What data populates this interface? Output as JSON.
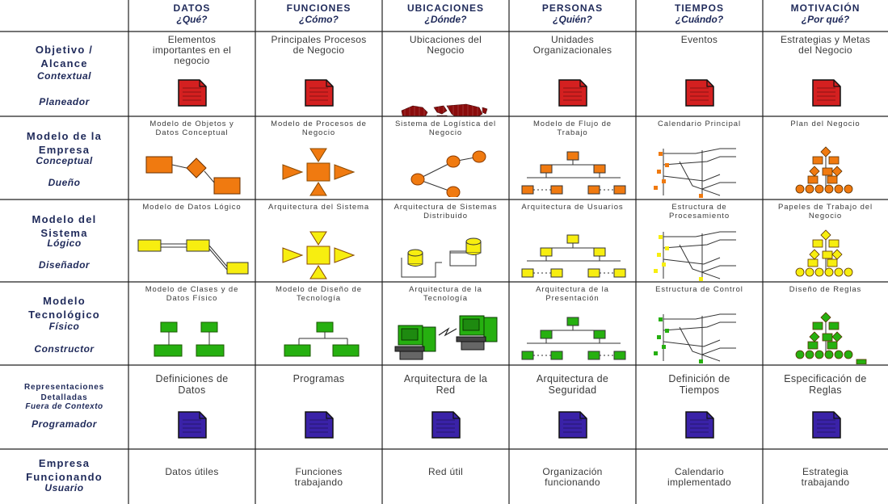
{
  "columns": [
    {
      "title": "DATOS",
      "subtitle": "¿Qué?"
    },
    {
      "title": "FUNCIONES",
      "subtitle": "¿Cómo?"
    },
    {
      "title": "UBICACIONES",
      "subtitle": "¿Dónde?"
    },
    {
      "title": "PERSONAS",
      "subtitle": "¿Quién?"
    },
    {
      "title": "TIEMPOS",
      "subtitle": "¿Cuándo?"
    },
    {
      "title": "MOTIVACIÓN",
      "subtitle": "¿Por qué?"
    }
  ],
  "rows": [
    {
      "title": "Objetivo /\nAlcance",
      "subtitle": "Contextual",
      "role": "Planeador",
      "small": false,
      "cells": [
        "Elementos\nimportantes en el\nnegocio",
        "Principales Procesos\nde Negocio",
        "Ubicaciones del\nNegocio",
        "Unidades\nOrganizacionales",
        "Eventos",
        "Estrategias y Metas\ndel Negocio"
      ],
      "icons": [
        "doc-red-icon",
        "doc-red-icon",
        "world-map-icon",
        "doc-red-icon",
        "doc-red-icon",
        "doc-red-icon"
      ]
    },
    {
      "title": "Modelo de la\nEmpresa",
      "subtitle": "Conceptual",
      "role": "Dueño",
      "small": false,
      "cells": [
        "Modelo de Objetos y\nDatos Conceptual",
        "Modelo de Procesos de\nNegocio",
        "Sistema de Logística del\nNegocio",
        "Modelo de Flujo de\nTrabajo",
        "Calendario Principal",
        "Plan del Negocio"
      ],
      "icons": [
        "entity-diagram-icon",
        "process-diagram-icon",
        "network-diagram-icon",
        "org-chart-icon",
        "timeline-diagram-icon",
        "rule-tree-icon"
      ]
    },
    {
      "title": "Modelo del\nSistema",
      "subtitle": "Lógico",
      "role": "Diseñador",
      "small": false,
      "cells": [
        "Modelo de Datos Lógico",
        "Arquitectura del Sistema",
        "Arquitectura de Sistemas\nDistribuido",
        "Arquitectura de Usuarios",
        "Estructura de\nProcesamiento",
        "Papeles de Trabajo del\nNegocio"
      ],
      "icons": [
        "entity-diagram-icon",
        "process-diagram-icon",
        "distributed-system-icon",
        "org-chart-icon",
        "timeline-diagram-icon",
        "rule-tree-icon"
      ]
    },
    {
      "title": "Modelo\nTecnológico",
      "subtitle": "Físico",
      "role": "Constructor",
      "small": false,
      "cells": [
        "Modelo de Clases y de\nDatos Físico",
        "Modelo de Diseño de\nTecnología",
        "Arquitectura de la\nTecnología",
        "Arquitectura de la\nPresentación",
        "Estructura de Control",
        "Diseño de Reglas"
      ],
      "icons": [
        "class-diagram-icon",
        "class-diagram-icon",
        "computers-icon",
        "org-chart-icon",
        "timeline-diagram-icon",
        "rule-tree-icon"
      ]
    },
    {
      "title": "Representaciones\nDetalladas",
      "subtitle": "Fuera de Contexto",
      "role": "Programador",
      "small": true,
      "cells": [
        "Definiciones de\nDatos",
        "Programas",
        "Arquitectura de la\nRed",
        "Arquitectura de\nSeguridad",
        "Definición de\nTiempos",
        "Especificación de\nReglas"
      ],
      "icons": [
        "doc-purple-icon",
        "doc-purple-icon",
        "doc-purple-icon",
        "doc-purple-icon",
        "doc-purple-icon",
        "doc-purple-icon"
      ]
    },
    {
      "title": "Empresa\nFuncionando",
      "subtitle": "Usuario",
      "role": "",
      "small": false,
      "cells": [
        "Datos útiles",
        "Funciones\ntrabajando",
        "Red útil",
        "Organización\nfuncionando",
        "Calendario\nimplementado",
        "Estrategia\ntrabajando"
      ],
      "icons": [
        "",
        "",
        "",
        "",
        "",
        ""
      ]
    }
  ],
  "colors": {
    "text": "#3a3a3a",
    "header": "#1f2a5a",
    "grid": "#222222",
    "doc_red": "#d42020",
    "doc_purple": "#3a22a8",
    "orange": "#f07a10",
    "yellow": "#f7ee10",
    "green": "#26b010",
    "map": "#8a0c0c"
  }
}
